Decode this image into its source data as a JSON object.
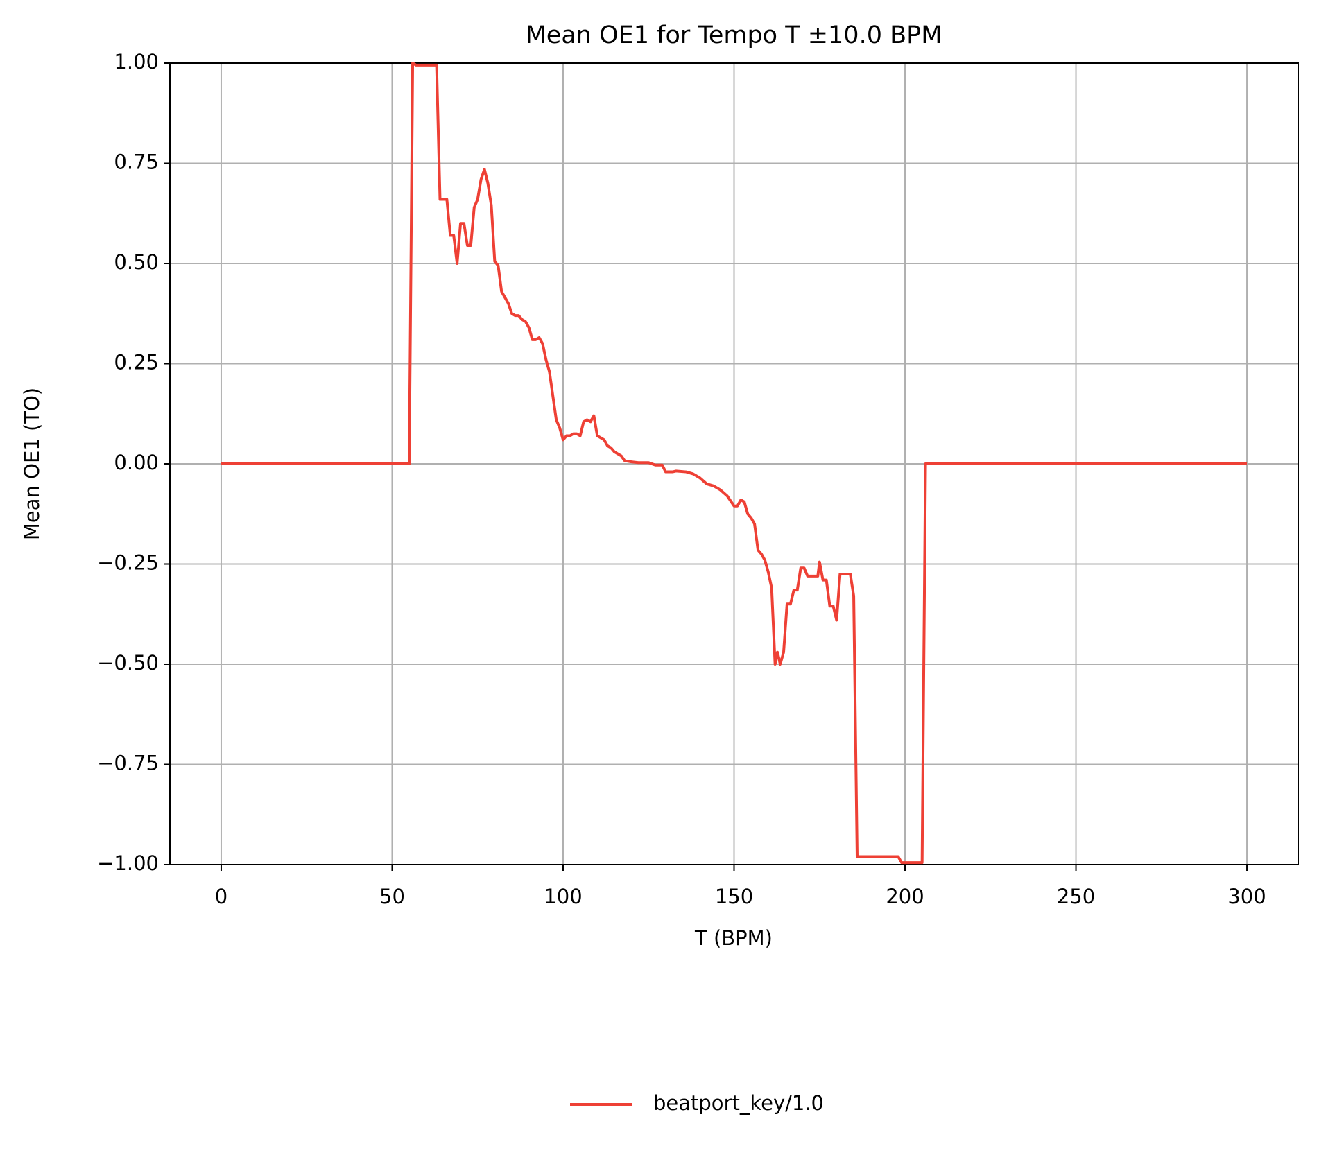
{
  "chart_data": {
    "type": "line",
    "title": "Mean OE1 for Tempo T ±10.0 BPM",
    "x_label": "T (BPM)",
    "y_label": "Mean OE1 (TO)",
    "xlim": [
      -15,
      315
    ],
    "ylim": [
      -1,
      1
    ],
    "xticks": [
      0,
      50,
      100,
      150,
      200,
      250,
      300
    ],
    "yticks": [
      {
        "value": 1,
        "label": "1.00"
      },
      {
        "value": 0.75,
        "label": "0.75"
      },
      {
        "value": 0.5,
        "label": "0.50"
      },
      {
        "value": 0.25,
        "label": "0.25"
      },
      {
        "value": 0,
        "label": "0.00"
      },
      {
        "value": -0.25,
        "label": "−0.25"
      },
      {
        "value": -0.5,
        "label": "−0.50"
      },
      {
        "value": -0.75,
        "label": "−0.75"
      },
      {
        "value": -1,
        "label": "−1.00"
      }
    ],
    "grid": true,
    "legend": "bottom",
    "x": [
      0,
      55,
      56,
      57,
      63,
      64,
      66,
      67,
      68,
      69,
      70,
      71,
      72,
      73,
      74,
      75,
      76,
      77,
      78,
      79,
      80,
      81,
      82,
      83,
      84,
      85,
      86,
      87,
      88,
      89,
      90,
      91,
      92,
      93,
      94,
      95,
      96,
      97,
      98,
      99,
      100,
      101,
      102,
      103,
      104,
      105,
      106,
      107,
      108,
      109,
      110,
      111,
      112,
      113,
      114,
      115,
      116,
      117,
      118,
      120,
      122,
      125,
      127,
      129,
      130,
      132,
      133,
      136,
      138,
      140,
      142,
      144,
      146,
      148,
      150,
      151,
      152,
      153,
      154,
      155,
      156,
      157,
      158,
      159,
      160,
      161,
      162,
      162.7,
      163.5,
      164.5,
      165.5,
      166.5,
      167.5,
      168.5,
      169.5,
      170.5,
      171.5,
      174.5,
      175,
      176,
      177,
      178,
      179,
      180,
      181,
      184,
      185,
      186,
      198,
      199,
      205,
      206,
      300
    ],
    "series": [
      {
        "name": "beatport_key/1.0",
        "color": "#ee4035",
        "values": [
          0,
          0,
          1,
          0.995,
          0.995,
          0.66,
          0.66,
          0.57,
          0.57,
          0.5,
          0.6,
          0.6,
          0.545,
          0.545,
          0.64,
          0.66,
          0.71,
          0.735,
          0.7,
          0.645,
          0.505,
          0.495,
          0.43,
          0.415,
          0.4,
          0.375,
          0.37,
          0.37,
          0.36,
          0.355,
          0.34,
          0.31,
          0.31,
          0.315,
          0.3,
          0.26,
          0.23,
          0.17,
          0.11,
          0.09,
          0.06,
          0.07,
          0.07,
          0.075,
          0.075,
          0.07,
          0.105,
          0.11,
          0.105,
          0.12,
          0.07,
          0.065,
          0.06,
          0.045,
          0.04,
          0.03,
          0.025,
          0.02,
          0.008,
          0.005,
          0.003,
          0.003,
          -0.003,
          -0.003,
          -0.02,
          -0.02,
          -0.018,
          -0.02,
          -0.025,
          -0.035,
          -0.05,
          -0.055,
          -0.065,
          -0.08,
          -0.105,
          -0.105,
          -0.09,
          -0.095,
          -0.125,
          -0.135,
          -0.15,
          -0.215,
          -0.225,
          -0.24,
          -0.27,
          -0.31,
          -0.5,
          -0.47,
          -0.5,
          -0.47,
          -0.35,
          -0.35,
          -0.315,
          -0.315,
          -0.26,
          -0.26,
          -0.28,
          -0.28,
          -0.245,
          -0.29,
          -0.29,
          -0.355,
          -0.355,
          -0.39,
          -0.275,
          -0.275,
          -0.33,
          -0.98,
          -0.98,
          -0.995,
          -0.995,
          0,
          0
        ]
      }
    ]
  }
}
